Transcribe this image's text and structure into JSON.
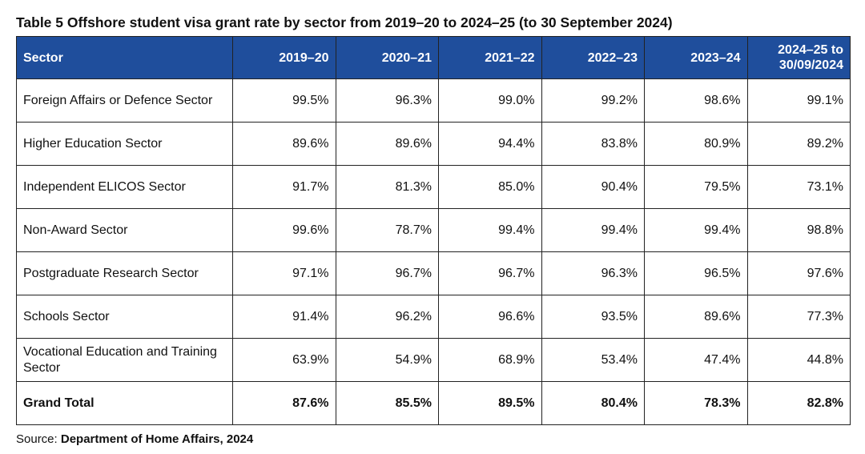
{
  "title": "Table 5 Offshore student visa grant rate by sector from 2019–20 to 2024–25 (to 30 September 2024)",
  "table": {
    "header": [
      "Sector",
      "2019–20",
      "2020–21",
      "2021–22",
      "2022–23",
      "2023–24",
      "2024–25 to 30/09/2024"
    ],
    "rows": [
      [
        "Foreign Affairs or Defence Sector",
        "99.5%",
        "96.3%",
        "99.0%",
        "99.2%",
        "98.6%",
        "99.1%"
      ],
      [
        "Higher Education Sector",
        "89.6%",
        "89.6%",
        "94.4%",
        "83.8%",
        "80.9%",
        "89.2%"
      ],
      [
        "Independent ELICOS Sector",
        "91.7%",
        "81.3%",
        "85.0%",
        "90.4%",
        "79.5%",
        "73.1%"
      ],
      [
        "Non-Award Sector",
        "99.6%",
        "78.7%",
        "99.4%",
        "99.4%",
        "99.4%",
        "98.8%"
      ],
      [
        "Postgraduate Research Sector",
        "97.1%",
        "96.7%",
        "96.7%",
        "96.3%",
        "96.5%",
        "97.6%"
      ],
      [
        "Schools Sector",
        "91.4%",
        "96.2%",
        "96.6%",
        "93.5%",
        "89.6%",
        "77.3%"
      ],
      [
        "Vocational Education and Training Sector",
        "63.9%",
        "54.9%",
        "68.9%",
        "53.4%",
        "47.4%",
        "44.8%"
      ]
    ],
    "total": [
      "Grand Total",
      "87.6%",
      "85.5%",
      "89.5%",
      "80.4%",
      "78.3%",
      "82.8%"
    ]
  },
  "source": {
    "label": "Source:",
    "text": "Department of Home Affairs, 2024"
  }
}
